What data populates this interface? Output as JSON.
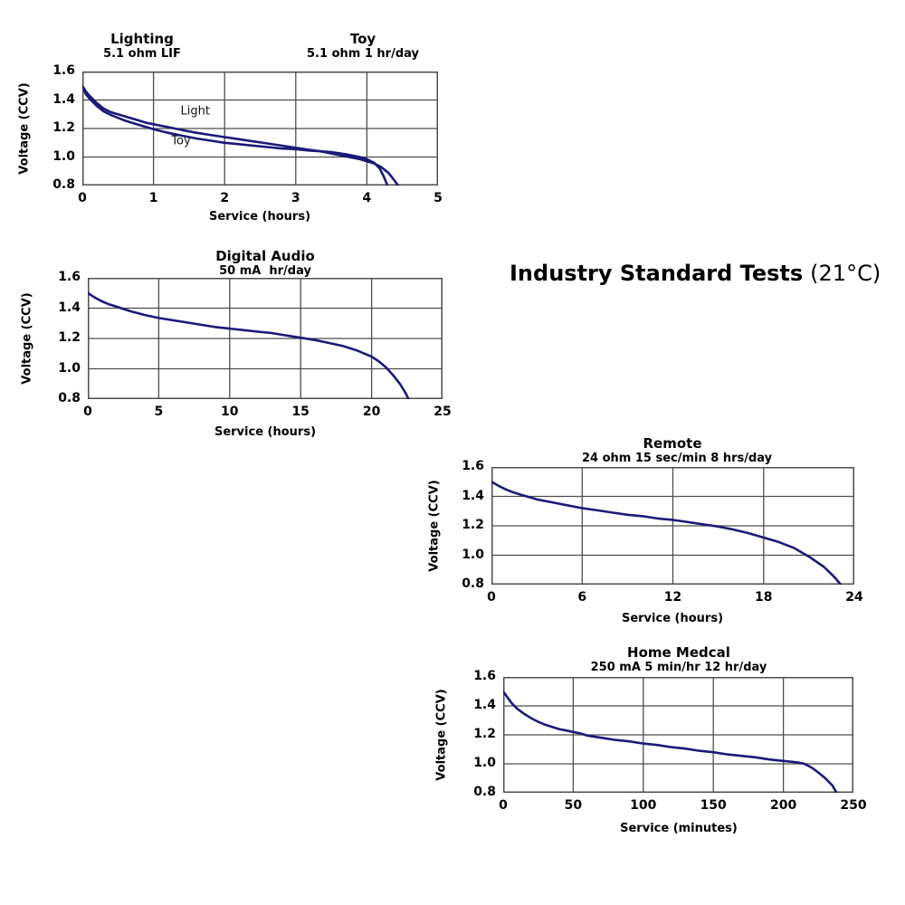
{
  "heading": {
    "bold": "Industry Standard Tests",
    "regular": "(21°C)"
  },
  "colors": {
    "curve": "#1a1a78",
    "grid": "#4d4d4d",
    "annotation": "#111111"
  },
  "chart_data": [
    {
      "type": "line",
      "title": "Lighting",
      "subtitle": "5.1 ohm LIF",
      "title2": "Toy",
      "subtitle2": "5.1 ohm 1 hr/day",
      "xlabel": "Service (hours)",
      "ylabel": "Voltage (CCV)",
      "xlim": [
        0,
        5
      ],
      "ylim": [
        0.8,
        1.6
      ],
      "grid": true,
      "legend": "inline-annotations",
      "xticks": [
        "0",
        "1",
        "2",
        "3",
        "4",
        "5"
      ],
      "yticks": [
        "1.6",
        "1.4",
        "1.2",
        "1.0",
        "0.8"
      ],
      "annotations": [
        {
          "text": "Light",
          "x": 1.38,
          "y": 1.3
        },
        {
          "text": "Toy",
          "x": 1.25,
          "y": 1.09
        }
      ],
      "series": [
        {
          "name": "Light",
          "points": [
            [
              0,
              1.5
            ],
            [
              0.05,
              1.46
            ],
            [
              0.1,
              1.43
            ],
            [
              0.2,
              1.38
            ],
            [
              0.3,
              1.34
            ],
            [
              0.4,
              1.315
            ],
            [
              0.5,
              1.3
            ],
            [
              0.6,
              1.285
            ],
            [
              0.7,
              1.27
            ],
            [
              0.8,
              1.255
            ],
            [
              0.9,
              1.24
            ],
            [
              1.0,
              1.23
            ],
            [
              1.2,
              1.21
            ],
            [
              1.4,
              1.19
            ],
            [
              1.6,
              1.17
            ],
            [
              1.8,
              1.155
            ],
            [
              2.0,
              1.14
            ],
            [
              2.2,
              1.125
            ],
            [
              2.4,
              1.11
            ],
            [
              2.6,
              1.095
            ],
            [
              2.8,
              1.08
            ],
            [
              3.0,
              1.065
            ],
            [
              3.2,
              1.05
            ],
            [
              3.35,
              1.04
            ],
            [
              3.5,
              1.025
            ],
            [
              3.7,
              1.005
            ],
            [
              3.9,
              0.985
            ],
            [
              4.1,
              0.955
            ],
            [
              4.2,
              0.93
            ],
            [
              4.3,
              0.89
            ],
            [
              4.38,
              0.84
            ],
            [
              4.44,
              0.8
            ]
          ]
        },
        {
          "name": "Toy",
          "points": [
            [
              0,
              1.5
            ],
            [
              0.05,
              1.44
            ],
            [
              0.1,
              1.41
            ],
            [
              0.2,
              1.36
            ],
            [
              0.3,
              1.32
            ],
            [
              0.4,
              1.295
            ],
            [
              0.5,
              1.275
            ],
            [
              0.6,
              1.255
            ],
            [
              0.7,
              1.24
            ],
            [
              0.8,
              1.225
            ],
            [
              0.9,
              1.21
            ],
            [
              1.0,
              1.195
            ],
            [
              1.2,
              1.17
            ],
            [
              1.4,
              1.15
            ],
            [
              1.6,
              1.13
            ],
            [
              1.8,
              1.115
            ],
            [
              2.0,
              1.1
            ],
            [
              2.2,
              1.09
            ],
            [
              2.4,
              1.08
            ],
            [
              2.6,
              1.07
            ],
            [
              2.8,
              1.06
            ],
            [
              3.0,
              1.055
            ],
            [
              3.2,
              1.045
            ],
            [
              3.35,
              1.04
            ],
            [
              3.5,
              1.035
            ],
            [
              3.7,
              1.02
            ],
            [
              3.9,
              1.0
            ],
            [
              4.0,
              0.985
            ],
            [
              4.1,
              0.96
            ],
            [
              4.18,
              0.92
            ],
            [
              4.24,
              0.86
            ],
            [
              4.29,
              0.8
            ]
          ]
        }
      ]
    },
    {
      "type": "line",
      "title": "Digital Audio",
      "subtitle": "50 mA  hr/day",
      "xlabel": "Service (hours)",
      "ylabel": "Voltage (CCV)",
      "xlim": [
        0,
        25
      ],
      "ylim": [
        0.8,
        1.6
      ],
      "grid": true,
      "xticks": [
        "0",
        "5",
        "10",
        "15",
        "20",
        "25"
      ],
      "yticks": [
        "1.6",
        "1.4",
        "1.2",
        "1.0",
        "0.8"
      ],
      "series": [
        {
          "name": "Digital Audio",
          "points": [
            [
              0,
              1.5
            ],
            [
              0.5,
              1.47
            ],
            [
              1,
              1.445
            ],
            [
              1.5,
              1.425
            ],
            [
              2,
              1.41
            ],
            [
              3,
              1.38
            ],
            [
              4,
              1.355
            ],
            [
              5,
              1.335
            ],
            [
              6,
              1.32
            ],
            [
              7,
              1.305
            ],
            [
              8,
              1.29
            ],
            [
              9,
              1.275
            ],
            [
              10,
              1.265
            ],
            [
              11,
              1.255
            ],
            [
              12,
              1.245
            ],
            [
              13,
              1.235
            ],
            [
              14,
              1.22
            ],
            [
              15,
              1.205
            ],
            [
              16,
              1.19
            ],
            [
              17,
              1.17
            ],
            [
              18,
              1.15
            ],
            [
              19,
              1.12
            ],
            [
              20,
              1.08
            ],
            [
              20.5,
              1.05
            ],
            [
              21,
              1.01
            ],
            [
              21.5,
              0.96
            ],
            [
              22,
              0.9
            ],
            [
              22.4,
              0.84
            ],
            [
              22.6,
              0.8
            ]
          ]
        }
      ]
    },
    {
      "type": "line",
      "title": "Remote",
      "subtitle": "24 ohm 15 sec/min 8 hrs/day",
      "xlabel": "Service (hours)",
      "ylabel": "Voltage (CCV)",
      "xlim": [
        0,
        24
      ],
      "ylim": [
        0.8,
        1.6
      ],
      "grid": true,
      "xticks": [
        "0",
        "6",
        "12",
        "18",
        "24"
      ],
      "yticks": [
        "1.6",
        "1.4",
        "1.2",
        "1.0",
        "0.8"
      ],
      "series": [
        {
          "name": "Remote",
          "points": [
            [
              0,
              1.5
            ],
            [
              0.5,
              1.47
            ],
            [
              1,
              1.445
            ],
            [
              1.5,
              1.425
            ],
            [
              2,
              1.41
            ],
            [
              3,
              1.38
            ],
            [
              4,
              1.36
            ],
            [
              5,
              1.34
            ],
            [
              6,
              1.32
            ],
            [
              7,
              1.305
            ],
            [
              8,
              1.29
            ],
            [
              9,
              1.275
            ],
            [
              10,
              1.265
            ],
            [
              11,
              1.25
            ],
            [
              12,
              1.24
            ],
            [
              13,
              1.225
            ],
            [
              14,
              1.21
            ],
            [
              15,
              1.195
            ],
            [
              16,
              1.175
            ],
            [
              17,
              1.15
            ],
            [
              18,
              1.12
            ],
            [
              19,
              1.09
            ],
            [
              20,
              1.05
            ],
            [
              21,
              0.99
            ],
            [
              22,
              0.92
            ],
            [
              22.7,
              0.85
            ],
            [
              23.1,
              0.8
            ]
          ]
        }
      ]
    },
    {
      "type": "line",
      "title": "Home Medcal",
      "subtitle": "250 mA 5 min/hr 12 hr/day",
      "xlabel": "Service (minutes)",
      "ylabel": "Voltage (CCV)",
      "xlim": [
        0,
        250
      ],
      "ylim": [
        0.8,
        1.6
      ],
      "grid": true,
      "xticks": [
        "0",
        "50",
        "100",
        "150",
        "200",
        "250"
      ],
      "yticks": [
        "1.6",
        "1.4",
        "1.2",
        "1.0",
        "0.8"
      ],
      "series": [
        {
          "name": "Home Medcal",
          "points": [
            [
              0,
              1.5
            ],
            [
              3,
              1.46
            ],
            [
              6,
              1.42
            ],
            [
              10,
              1.38
            ],
            [
              15,
              1.345
            ],
            [
              20,
              1.315
            ],
            [
              25,
              1.29
            ],
            [
              30,
              1.27
            ],
            [
              35,
              1.255
            ],
            [
              40,
              1.24
            ],
            [
              45,
              1.23
            ],
            [
              50,
              1.22
            ],
            [
              55,
              1.21
            ],
            [
              60,
              1.195
            ],
            [
              70,
              1.18
            ],
            [
              80,
              1.165
            ],
            [
              90,
              1.155
            ],
            [
              100,
              1.14
            ],
            [
              110,
              1.13
            ],
            [
              120,
              1.115
            ],
            [
              130,
              1.105
            ],
            [
              140,
              1.09
            ],
            [
              150,
              1.08
            ],
            [
              160,
              1.065
            ],
            [
              170,
              1.055
            ],
            [
              180,
              1.045
            ],
            [
              190,
              1.03
            ],
            [
              200,
              1.02
            ],
            [
              210,
              1.01
            ],
            [
              215,
              1.0
            ],
            [
              220,
              0.975
            ],
            [
              225,
              0.94
            ],
            [
              230,
              0.9
            ],
            [
              235,
              0.85
            ],
            [
              238,
              0.8
            ]
          ]
        }
      ]
    }
  ]
}
